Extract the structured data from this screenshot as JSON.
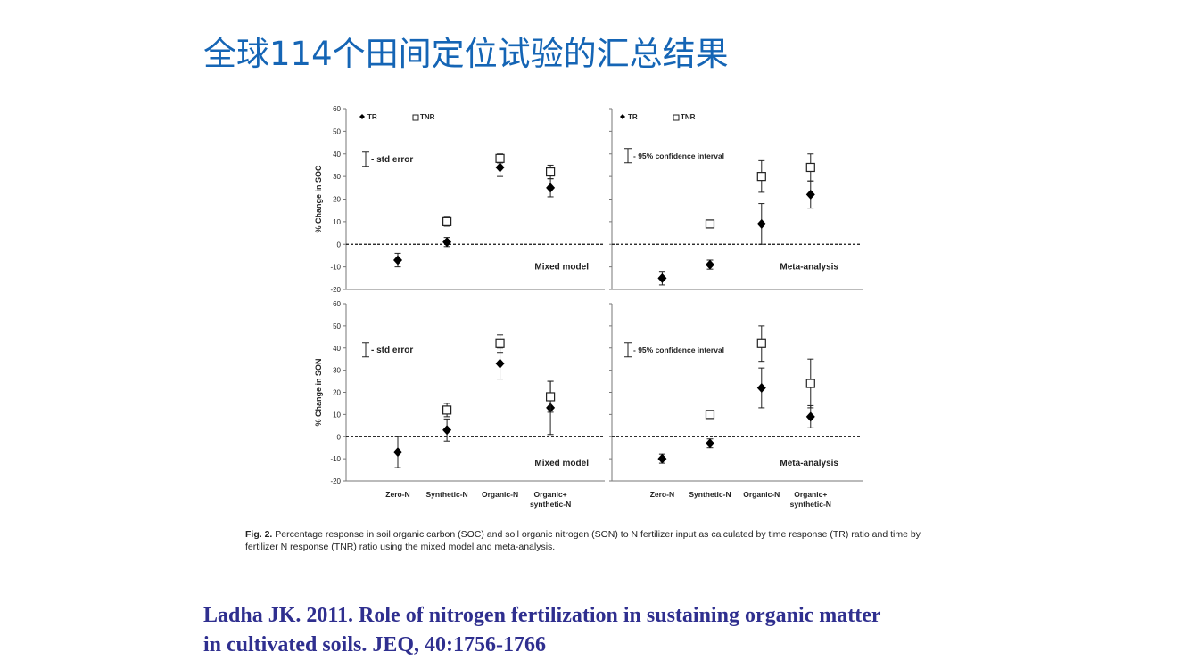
{
  "slide": {
    "title": "全球114个田间定位试验的汇总结果",
    "caption_label": "Fig. 2.",
    "caption_text": "Percentage response in soil organic carbon (SOC) and soil organic nitrogen (SON) to N fertilizer input as calculated by time response (TR) ratio and time by fertilizer N response (TNR) ratio using the mixed model and meta-analysis.",
    "citation_line1": "Ladha JK. 2011. Role of nitrogen fertilization in sustaining organic matter",
    "citation_line2": "in cultivated soils.  JEQ, 40:1756-1766"
  },
  "colors": {
    "title": "#1565b5",
    "citation": "#2f2f8f",
    "marker": "#000000"
  },
  "chart_data": [
    {
      "type": "scatter",
      "panel": "top-left",
      "ylabel": "% Change in SOC",
      "ylim": [
        -20,
        60
      ],
      "yticks": [
        -20,
        -10,
        0,
        10,
        20,
        30,
        40,
        50,
        60
      ],
      "categories": [
        "Zero-N",
        "Synthetic-N",
        "Organic-N",
        "Organic+\nsynthetic-N"
      ],
      "legend": [
        "TR",
        "TNR"
      ],
      "errorbar_note": "- std error",
      "model_label": "Mixed model",
      "series": [
        {
          "name": "TR",
          "marker": "diamond",
          "values": [
            -7,
            1,
            34,
            25
          ],
          "err": [
            [
              3,
              3
            ],
            [
              2,
              2
            ],
            [
              4,
              4
            ],
            [
              4,
              4
            ]
          ]
        },
        {
          "name": "TNR",
          "marker": "square",
          "values": [
            null,
            10,
            38,
            32
          ],
          "err": [
            null,
            [
              2,
              2
            ],
            [
              2,
              2
            ],
            [
              3,
              3
            ]
          ]
        }
      ]
    },
    {
      "type": "scatter",
      "panel": "top-right",
      "ylim": [
        -20,
        60
      ],
      "categories": [
        "Zero-N",
        "Synthetic-N",
        "Organic-N",
        "Organic+\nsynthetic-N"
      ],
      "legend": [
        "TR",
        "TNR"
      ],
      "errorbar_note": "- 95% confidence interval",
      "model_label": "Meta-analysis",
      "series": [
        {
          "name": "TR",
          "marker": "diamond",
          "values": [
            -15,
            -9,
            9,
            22
          ],
          "err": [
            [
              3,
              3
            ],
            [
              2,
              2
            ],
            [
              9,
              9
            ],
            [
              6,
              6
            ]
          ]
        },
        {
          "name": "TNR",
          "marker": "square",
          "values": [
            null,
            9,
            30,
            34
          ],
          "err": [
            null,
            [
              1,
              1
            ],
            [
              7,
              7
            ],
            [
              6,
              6
            ]
          ]
        }
      ]
    },
    {
      "type": "scatter",
      "panel": "bottom-left",
      "ylabel": "% Change in SON",
      "ylim": [
        -20,
        60
      ],
      "yticks": [
        -20,
        -10,
        0,
        10,
        20,
        30,
        40,
        50,
        60
      ],
      "categories": [
        "Zero-N",
        "Synthetic-N",
        "Organic-N",
        "Organic+\nsynthetic-N"
      ],
      "errorbar_note": "- std error",
      "model_label": "Mixed model",
      "series": [
        {
          "name": "TR",
          "marker": "diamond",
          "values": [
            -7,
            3,
            33,
            13
          ],
          "err": [
            [
              7,
              7
            ],
            [
              5,
              5
            ],
            [
              7,
              7
            ],
            [
              12,
              12
            ]
          ]
        },
        {
          "name": "TNR",
          "marker": "square",
          "values": [
            null,
            12,
            42,
            18
          ],
          "err": [
            null,
            [
              3,
              3
            ],
            [
              4,
              4
            ],
            [
              7,
              7
            ]
          ]
        }
      ]
    },
    {
      "type": "scatter",
      "panel": "bottom-right",
      "ylim": [
        -20,
        60
      ],
      "categories": [
        "Zero-N",
        "Synthetic-N",
        "Organic-N",
        "Organic+\nsynthetic-N"
      ],
      "errorbar_note": "- 95% confidence interval",
      "model_label": "Meta-analysis",
      "series": [
        {
          "name": "TR",
          "marker": "diamond",
          "values": [
            -10,
            -3,
            22,
            9
          ],
          "err": [
            [
              2,
              2
            ],
            [
              2,
              2
            ],
            [
              9,
              9
            ],
            [
              5,
              5
            ]
          ]
        },
        {
          "name": "TNR",
          "marker": "square",
          "values": [
            null,
            10,
            42,
            24
          ],
          "err": [
            null,
            [
              1,
              1
            ],
            [
              8,
              8
            ],
            [
              11,
              11
            ]
          ]
        }
      ]
    }
  ]
}
